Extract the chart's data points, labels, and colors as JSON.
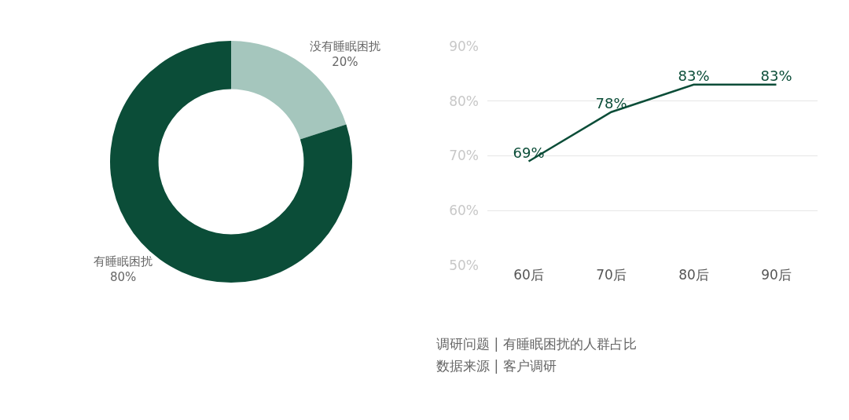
{
  "chart_data": [
    {
      "type": "donut",
      "categories": [
        "没有睡眠困扰",
        "有睡眠困扰"
      ],
      "values": [
        20,
        80
      ],
      "colors": [
        "#a5c6bd",
        "#0b4d38"
      ],
      "value_labels": [
        "20%",
        "80%"
      ]
    },
    {
      "type": "line",
      "categories": [
        "60后",
        "70后",
        "80后",
        "90后"
      ],
      "series": [
        {
          "color": "#0b4d38",
          "values": [
            69,
            78,
            83,
            83
          ],
          "value_labels": [
            "69%",
            "78%",
            "83%",
            "83%"
          ]
        }
      ],
      "ylim": [
        50,
        90
      ],
      "yticks": [
        {
          "value": 50,
          "label": "50%"
        },
        {
          "value": 60,
          "label": "60%"
        },
        {
          "value": 70,
          "label": "70%"
        },
        {
          "value": 80,
          "label": "80%"
        },
        {
          "value": 90,
          "label": "90%"
        }
      ],
      "grid": "y",
      "marker": "none",
      "line_style": "solid",
      "annotations": [
        "调研问题 | 有睡眠困扰的人群占比",
        "数据来源 | 客户调研"
      ]
    }
  ]
}
